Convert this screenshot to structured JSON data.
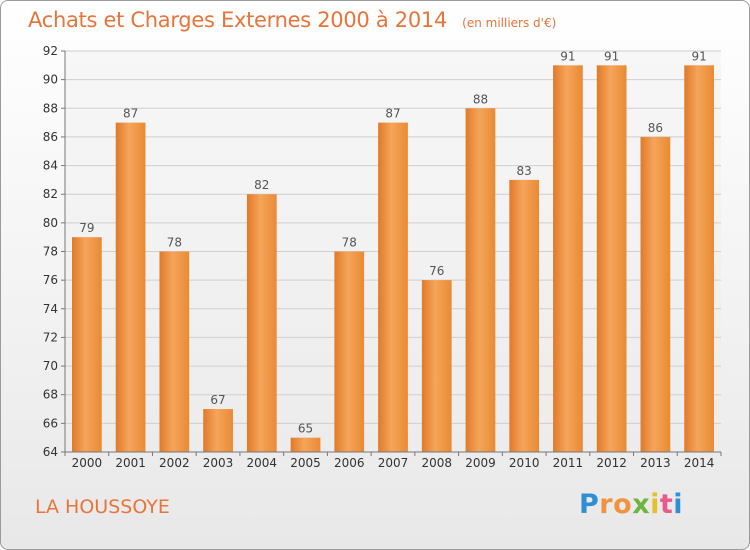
{
  "chart_data": {
    "type": "bar",
    "title": "Achats et Charges Externes 2000 à 2014",
    "subtitle": "(en milliers d'€)",
    "categories": [
      "2000",
      "2001",
      "2002",
      "2003",
      "2004",
      "2005",
      "2006",
      "2007",
      "2008",
      "2009",
      "2010",
      "2011",
      "2012",
      "2013",
      "2014"
    ],
    "values": [
      79,
      87,
      78,
      67,
      82,
      65,
      78,
      87,
      76,
      88,
      83,
      91,
      91,
      86,
      91
    ],
    "ylim": [
      64,
      92
    ],
    "yticks": [
      64,
      66,
      68,
      70,
      72,
      74,
      76,
      78,
      80,
      82,
      84,
      86,
      88,
      90,
      92
    ],
    "xlabel": "",
    "ylabel": "",
    "grid": true,
    "bar_color": "#f0923f",
    "label_color": "#555555"
  },
  "place_name": "LA HOUSSOYE",
  "logo": {
    "letters": [
      "P",
      "r",
      "o",
      "x",
      "i",
      "t",
      "i"
    ],
    "colors": [
      "#2e8fd4",
      "#f0923f",
      "#f0923f",
      "#6fb43f",
      "#e4c12a",
      "#e85a8c",
      "#2e8fd4"
    ]
  },
  "colors": {
    "accent": "#e8743b"
  }
}
